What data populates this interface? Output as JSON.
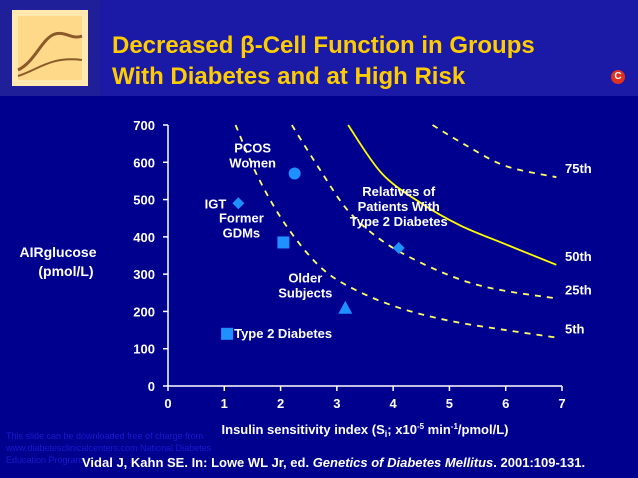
{
  "title_line1": "Decreased β-Cell Function in Groups",
  "title_line2": "With Diabetes and at High Risk",
  "badge": "C",
  "footnote": "This slide can be downloaded free of charge from www.diabetesclinicalcenters.com National Diabetes Education Program",
  "citation": {
    "prefix": "Vidal J, Kahn SE. In: Lowe WL Jr, ed. ",
    "book": "Genetics of Diabetes Mellitus",
    "suffix": ". 2001:109-131."
  },
  "colors": {
    "background": "#00008f",
    "title": "#ffcc00",
    "curve": "#ffff00",
    "marker": "#1e90ff",
    "text": "#ffffff"
  },
  "chart_data": {
    "type": "scatter",
    "xlabel_parts": [
      "Insulin sensitivity index (S",
      "i",
      "; x10",
      "-5",
      " min",
      "-1",
      "/pmol/L)"
    ],
    "ylabel_lines": [
      "AIRglucose",
      "(pmol/L)"
    ],
    "xlim": [
      0,
      7
    ],
    "ylim": [
      0,
      700
    ],
    "x_ticks": [
      0,
      1,
      2,
      3,
      4,
      5,
      6,
      7
    ],
    "y_ticks": [
      0,
      100,
      200,
      300,
      400,
      500,
      600,
      700
    ],
    "grid": false,
    "percentile_curves": [
      {
        "name": "75th",
        "style": "dashed",
        "points": [
          [
            4.7,
            700
          ],
          [
            5.3,
            645
          ],
          [
            6,
            590
          ],
          [
            6.9,
            560
          ]
        ]
      },
      {
        "name": "50th",
        "style": "solid",
        "points": [
          [
            3.2,
            700
          ],
          [
            3.8,
            570
          ],
          [
            4.5,
            490
          ],
          [
            5.2,
            430
          ],
          [
            6,
            380
          ],
          [
            6.9,
            325
          ]
        ]
      },
      {
        "name": "25th",
        "style": "dashed",
        "points": [
          [
            2.2,
            700
          ],
          [
            2.7,
            580
          ],
          [
            3.2,
            470
          ],
          [
            3.8,
            390
          ],
          [
            4.5,
            330
          ],
          [
            5.3,
            280
          ],
          [
            6,
            255
          ],
          [
            6.9,
            235
          ]
        ]
      },
      {
        "name": "5th",
        "style": "dashed",
        "points": [
          [
            1.2,
            700
          ],
          [
            1.6,
            560
          ],
          [
            2.1,
            430
          ],
          [
            2.7,
            320
          ],
          [
            3.3,
            260
          ],
          [
            4.1,
            210
          ],
          [
            5,
            175
          ],
          [
            6,
            150
          ],
          [
            6.9,
            130
          ]
        ]
      }
    ],
    "groups": [
      {
        "name": "Type 2 Diabetes",
        "x": 1.05,
        "y": 140,
        "marker": "square"
      },
      {
        "name": "IGT",
        "x": 1.25,
        "y": 490,
        "marker": "diamond"
      },
      {
        "name": "PCOS Women",
        "x": 2.25,
        "y": 570,
        "marker": "circle"
      },
      {
        "name": "Former GDMs",
        "x": 2.05,
        "y": 385,
        "marker": "square"
      },
      {
        "name": "Older Subjects",
        "x": 3.15,
        "y": 210,
        "marker": "triangle"
      },
      {
        "name": "Relatives of Patients With Type 2 Diabetes",
        "x": 4.1,
        "y": 370,
        "marker": "diamond"
      }
    ]
  }
}
